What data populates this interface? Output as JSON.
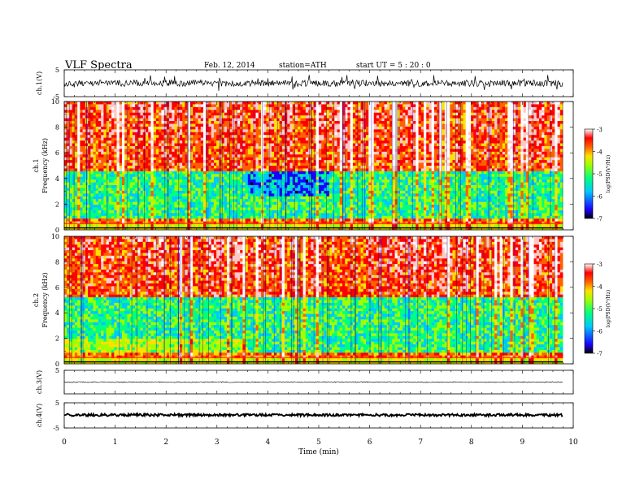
{
  "header": {
    "title": "VLF  Spectra",
    "date": "Feb. 12, 2014",
    "station": "station=ATH",
    "start": "start  UT  =   5  : 20 : 0"
  },
  "chart_data": [
    {
      "type": "line",
      "ylabel": "ch.1(V)",
      "ylim": [
        -5,
        5
      ],
      "yticks": [
        "5",
        "-5"
      ],
      "xlim": [
        0,
        10
      ]
    },
    {
      "type": "heatmap",
      "ylabel": "ch.1\nFrequency (kHz)",
      "ylim": [
        0,
        10
      ],
      "yticks": [
        "0",
        "2",
        "4",
        "6",
        "8",
        "10"
      ],
      "xlim": [
        0,
        9.8
      ],
      "colorbar": {
        "label": "log(PSD(V²/Hz)",
        "ticks": [
          "-3",
          "-4",
          "-5",
          "-6",
          "-7"
        ],
        "range": [
          -7,
          -3
        ]
      }
    },
    {
      "type": "heatmap",
      "ylabel": "ch.2\nFrequency (kHz)",
      "ylim": [
        0,
        10
      ],
      "yticks": [
        "0",
        "2",
        "4",
        "6",
        "8",
        "10"
      ],
      "xlim": [
        0,
        9.8
      ],
      "colorbar": {
        "label": "log(PSD(V²/Hz)",
        "ticks": [
          "-3",
          "-4",
          "-5",
          "-6",
          "-7"
        ],
        "range": [
          -7,
          -3
        ]
      }
    },
    {
      "type": "line",
      "ylabel": "ch.3(V)",
      "ylim": [
        -5,
        5
      ],
      "yticks": [
        "5"
      ],
      "xlim": [
        0,
        10
      ]
    },
    {
      "type": "line",
      "ylabel": "ch.4(V)",
      "ylim": [
        -5,
        5
      ],
      "yticks": [
        "5",
        "-5"
      ],
      "xlim": [
        0,
        10
      ]
    }
  ],
  "xaxis": {
    "label": "Time  (min)",
    "ticks": [
      "0",
      "1",
      "2",
      "3",
      "4",
      "5",
      "6",
      "7",
      "8",
      "9",
      "10"
    ]
  },
  "colors": {
    "colormap": [
      "#000000",
      "#1a00ff",
      "#00c8ff",
      "#00ff80",
      "#a0ff00",
      "#ffe000",
      "#ff6000",
      "#ff0000",
      "#ffc8c8",
      "#ffffff"
    ]
  }
}
